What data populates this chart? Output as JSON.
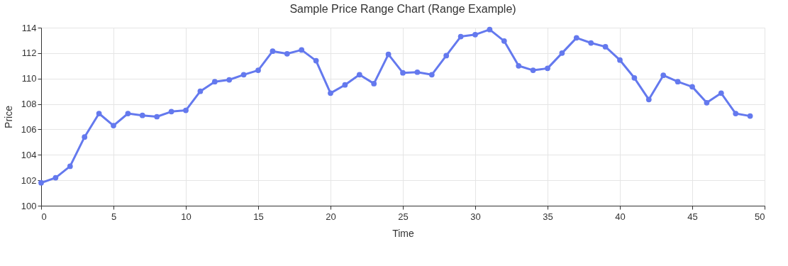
{
  "chart_data": {
    "type": "line",
    "title": "Sample Price Range Chart (Range Example)",
    "xlabel": "Time",
    "ylabel": "Price",
    "x": [
      0,
      1,
      2,
      3,
      4,
      5,
      6,
      7,
      8,
      9,
      10,
      11,
      12,
      13,
      14,
      15,
      16,
      17,
      18,
      19,
      20,
      21,
      22,
      23,
      24,
      25,
      26,
      27,
      28,
      29,
      30,
      31,
      32,
      33,
      34,
      35,
      36,
      37,
      38,
      39,
      40,
      41,
      42,
      43,
      44,
      45,
      46,
      47,
      48,
      49
    ],
    "series": [
      {
        "color": "#6479ee",
        "values": [
          101.8,
          102.2,
          103.1,
          105.4,
          107.25,
          106.3,
          107.25,
          107.1,
          107.0,
          107.4,
          107.5,
          109.0,
          109.75,
          109.9,
          110.3,
          110.65,
          112.15,
          111.95,
          112.25,
          111.4,
          108.85,
          109.5,
          110.3,
          109.6,
          111.9,
          110.45,
          110.5,
          110.3,
          111.8,
          113.3,
          113.45,
          113.85,
          112.95,
          111.0,
          110.65,
          110.8,
          112.0,
          113.2,
          112.8,
          112.5,
          111.45,
          110.05,
          108.35,
          110.25,
          109.75,
          109.35,
          108.1,
          108.85,
          107.25,
          107.05
        ]
      }
    ],
    "xlim": [
      0,
      50
    ],
    "xticks": [
      0,
      5,
      10,
      15,
      20,
      25,
      30,
      35,
      40,
      45,
      50
    ],
    "ylim": [
      100,
      114
    ],
    "yticks": [
      100,
      102,
      104,
      106,
      108,
      110,
      112,
      114
    ],
    "grid": true,
    "marker": "circle",
    "line_style": "solid"
  }
}
